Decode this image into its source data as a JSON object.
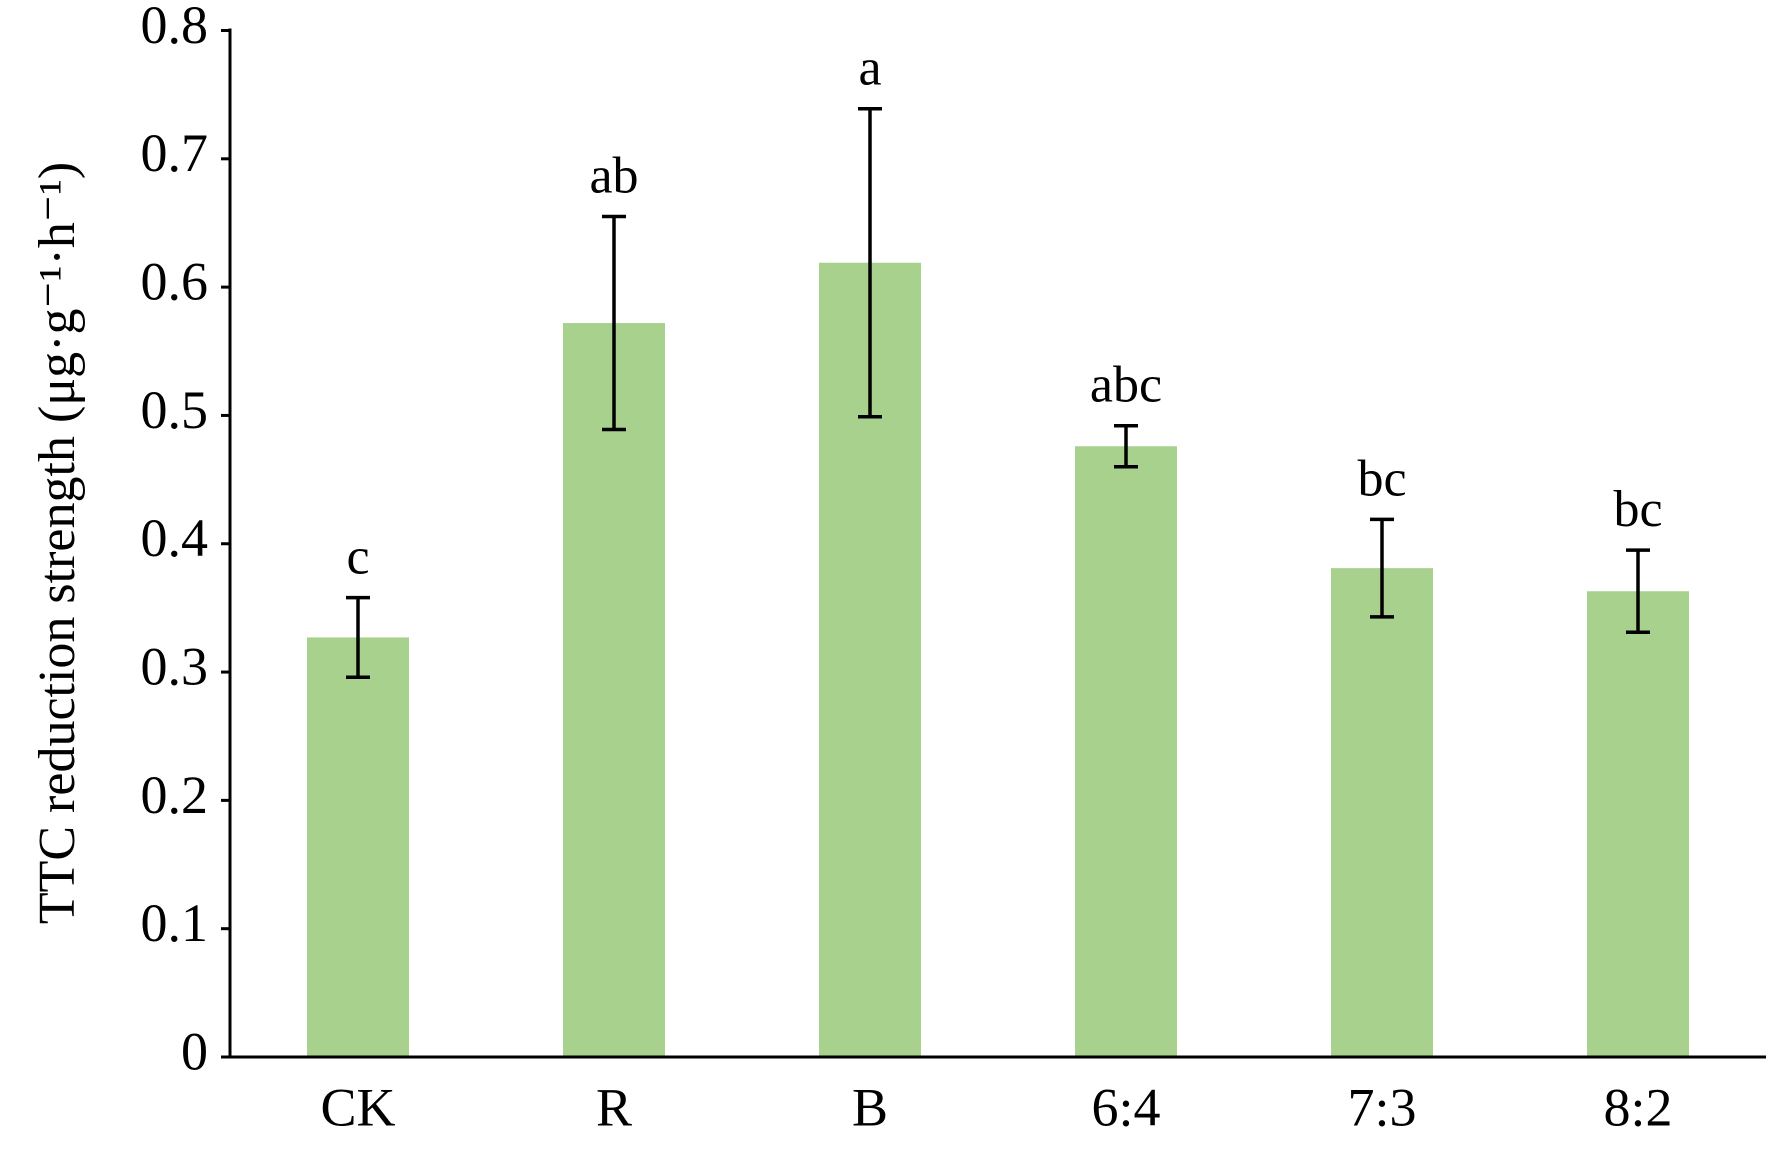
{
  "chart_data": {
    "type": "bar",
    "y_label": "TTC reduction strength (μg·g⁻¹·h⁻¹)",
    "categories": [
      "CK",
      "R",
      "B",
      "6:4",
      "7:3",
      "8:2"
    ],
    "values": [
      0.327,
      0.572,
      0.619,
      0.476,
      0.381,
      0.363
    ],
    "errors": [
      0.031,
      0.083,
      0.12,
      0.016,
      0.038,
      0.032
    ],
    "annotations": [
      "c",
      "ab",
      "a",
      "abc",
      "bc",
      "bc"
    ],
    "color": "#a9d18e",
    "ylim": [
      0,
      0.8
    ],
    "yticks": [
      0,
      0.1,
      0.2,
      0.3,
      0.4,
      0.5,
      0.6,
      0.7,
      0.8
    ],
    "grid": false
  }
}
